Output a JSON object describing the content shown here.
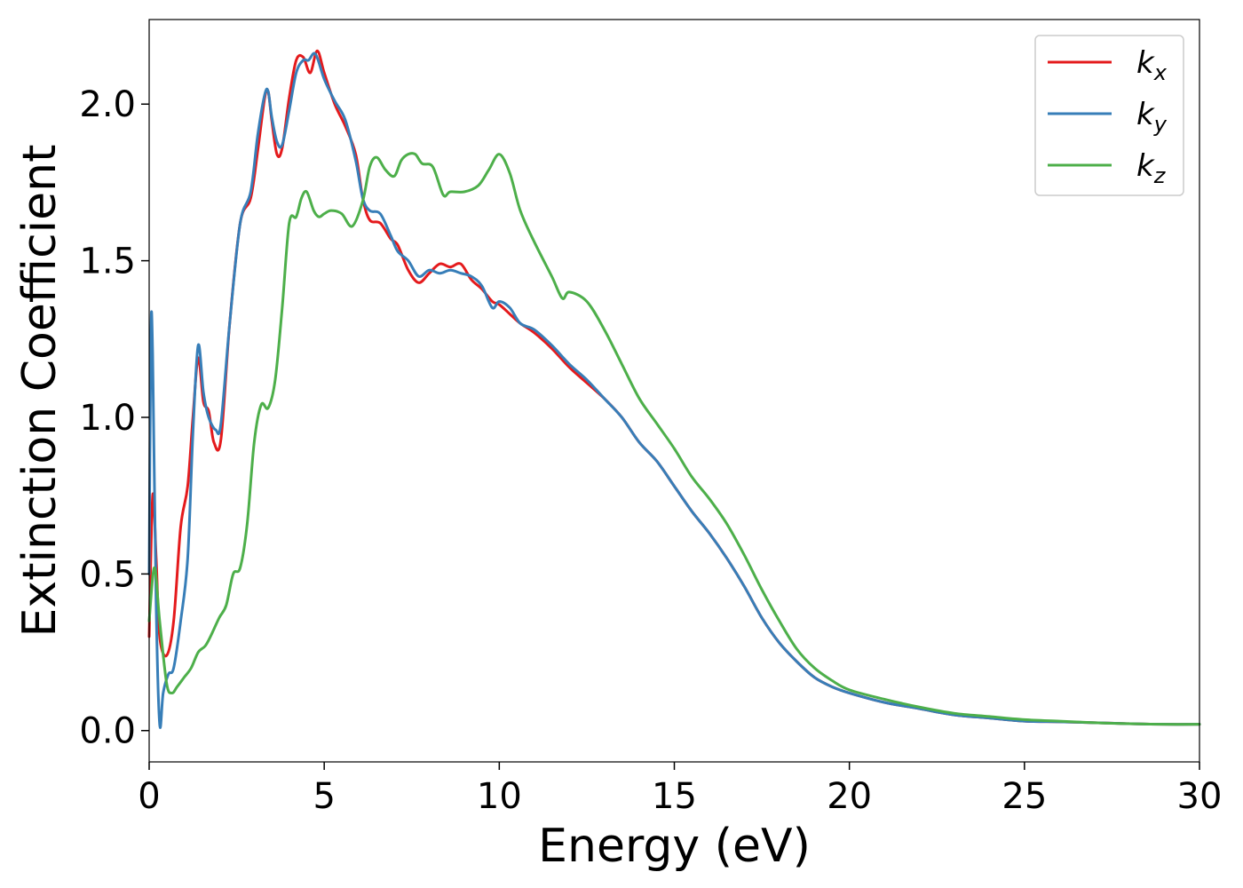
{
  "chart_data": {
    "type": "line",
    "xlabel": "Energy (eV)",
    "ylabel": "Extinction Coefficient",
    "xlim": [
      0,
      30
    ],
    "ylim": [
      -0.1,
      2.27
    ],
    "xticks": [
      0,
      5,
      10,
      15,
      20,
      25,
      30
    ],
    "yticks": [
      0.0,
      0.5,
      1.0,
      1.5,
      2.0
    ],
    "xtick_labels": [
      "0",
      "5",
      "10",
      "15",
      "20",
      "25",
      "30"
    ],
    "ytick_labels": [
      "0.0",
      "0.5",
      "1.0",
      "1.5",
      "2.0"
    ],
    "grid": false,
    "legend_position": "top-right",
    "series": [
      {
        "name": "k_x",
        "label_base": "k",
        "label_sub": "x",
        "color": "#e41a1c",
        "x": [
          0,
          0.1,
          0.2,
          0.3,
          0.5,
          0.7,
          0.9,
          1.1,
          1.25,
          1.4,
          1.55,
          1.7,
          1.85,
          2.05,
          2.3,
          2.6,
          2.9,
          3.1,
          3.3,
          3.4,
          3.5,
          3.65,
          3.8,
          4.0,
          4.2,
          4.4,
          4.6,
          4.8,
          5.0,
          5.3,
          5.6,
          5.9,
          6.1,
          6.3,
          6.6,
          6.9,
          7.1,
          7.4,
          7.7,
          8.0,
          8.3,
          8.6,
          8.9,
          9.2,
          9.5,
          9.8,
          10.0,
          10.3,
          10.6,
          11.0,
          11.5,
          12.0,
          12.5,
          13.0,
          13.5,
          14.0,
          14.5,
          15.0,
          15.5,
          16.0,
          16.5,
          17.0,
          17.5,
          18.0,
          18.5,
          19.0,
          19.5,
          20.0,
          21.0,
          22.0,
          23.0,
          24.0,
          25.0,
          26.0,
          27.0,
          28.0,
          29.0,
          30.0
        ],
        "y": [
          0.3,
          0.75,
          0.55,
          0.3,
          0.24,
          0.35,
          0.65,
          0.78,
          1.0,
          1.19,
          1.05,
          1.02,
          0.92,
          0.93,
          1.3,
          1.62,
          1.7,
          1.85,
          2.02,
          2.04,
          1.95,
          1.84,
          1.86,
          2.02,
          2.14,
          2.15,
          2.1,
          2.17,
          2.1,
          2.0,
          1.93,
          1.84,
          1.7,
          1.63,
          1.62,
          1.57,
          1.55,
          1.47,
          1.43,
          1.46,
          1.49,
          1.48,
          1.49,
          1.44,
          1.41,
          1.37,
          1.36,
          1.33,
          1.3,
          1.27,
          1.22,
          1.16,
          1.11,
          1.06,
          1.0,
          0.92,
          0.86,
          0.78,
          0.7,
          0.63,
          0.55,
          0.46,
          0.36,
          0.28,
          0.22,
          0.17,
          0.14,
          0.12,
          0.09,
          0.07,
          0.05,
          0.04,
          0.03,
          0.028,
          0.025,
          0.022,
          0.02,
          0.02
        ]
      },
      {
        "name": "k_y",
        "label_base": "k",
        "label_sub": "y",
        "color": "#377eb8",
        "x": [
          0,
          0.05,
          0.1,
          0.2,
          0.3,
          0.4,
          0.55,
          0.7,
          0.9,
          1.1,
          1.25,
          1.4,
          1.55,
          1.7,
          1.9,
          2.05,
          2.3,
          2.6,
          2.9,
          3.1,
          3.3,
          3.4,
          3.5,
          3.65,
          3.8,
          4.0,
          4.2,
          4.4,
          4.55,
          4.75,
          5.0,
          5.3,
          5.6,
          5.9,
          6.1,
          6.3,
          6.6,
          6.9,
          7.1,
          7.4,
          7.7,
          8.0,
          8.3,
          8.6,
          8.9,
          9.2,
          9.5,
          9.8,
          10.0,
          10.3,
          10.6,
          11.0,
          11.5,
          12.0,
          12.5,
          13.0,
          13.5,
          14.0,
          14.5,
          15.0,
          15.5,
          16.0,
          16.5,
          17.0,
          17.5,
          18.0,
          18.5,
          19.0,
          19.5,
          20.0,
          21.0,
          22.0,
          23.0,
          24.0,
          25.0,
          26.0,
          27.0,
          28.0,
          29.0,
          30.0
        ],
        "y": [
          0.5,
          1.27,
          1.2,
          0.4,
          0.02,
          0.12,
          0.18,
          0.2,
          0.35,
          0.55,
          0.95,
          1.23,
          1.08,
          1.0,
          0.96,
          0.98,
          1.3,
          1.62,
          1.72,
          1.9,
          2.03,
          2.04,
          1.96,
          1.88,
          1.87,
          1.98,
          2.1,
          2.14,
          2.14,
          2.16,
          2.08,
          2.01,
          1.95,
          1.82,
          1.7,
          1.66,
          1.65,
          1.58,
          1.53,
          1.5,
          1.45,
          1.47,
          1.46,
          1.47,
          1.46,
          1.45,
          1.42,
          1.35,
          1.37,
          1.35,
          1.3,
          1.28,
          1.23,
          1.17,
          1.12,
          1.06,
          1.0,
          0.92,
          0.86,
          0.78,
          0.7,
          0.63,
          0.55,
          0.46,
          0.36,
          0.28,
          0.22,
          0.17,
          0.14,
          0.12,
          0.09,
          0.07,
          0.05,
          0.04,
          0.03,
          0.028,
          0.025,
          0.022,
          0.02,
          0.02
        ]
      },
      {
        "name": "k_z",
        "label_base": "k",
        "label_sub": "z",
        "color": "#4daf4a",
        "x": [
          0,
          0.15,
          0.3,
          0.5,
          0.65,
          0.8,
          1.0,
          1.2,
          1.4,
          1.6,
          1.75,
          2.0,
          2.2,
          2.4,
          2.6,
          2.8,
          3.0,
          3.2,
          3.4,
          3.6,
          3.8,
          4.0,
          4.2,
          4.35,
          4.5,
          4.7,
          4.85,
          5.0,
          5.2,
          5.5,
          5.8,
          6.1,
          6.3,
          6.5,
          6.75,
          7.0,
          7.2,
          7.4,
          7.6,
          7.8,
          8.1,
          8.4,
          8.6,
          9.0,
          9.4,
          9.7,
          10.0,
          10.3,
          10.6,
          11.0,
          11.5,
          11.8,
          12.0,
          12.5,
          13.0,
          13.5,
          14.0,
          14.5,
          15.0,
          15.5,
          16.0,
          16.5,
          17.0,
          17.5,
          18.0,
          18.5,
          19.0,
          19.5,
          20.0,
          21.0,
          22.0,
          23.0,
          24.0,
          25.0,
          26.0,
          27.0,
          28.0,
          29.0,
          30.0
        ],
        "y": [
          0.35,
          0.52,
          0.35,
          0.15,
          0.12,
          0.14,
          0.17,
          0.2,
          0.25,
          0.27,
          0.3,
          0.36,
          0.4,
          0.5,
          0.52,
          0.66,
          0.92,
          1.04,
          1.03,
          1.12,
          1.35,
          1.62,
          1.64,
          1.7,
          1.72,
          1.66,
          1.64,
          1.65,
          1.66,
          1.65,
          1.61,
          1.69,
          1.8,
          1.83,
          1.79,
          1.77,
          1.82,
          1.84,
          1.84,
          1.81,
          1.8,
          1.71,
          1.72,
          1.72,
          1.74,
          1.79,
          1.84,
          1.78,
          1.66,
          1.56,
          1.45,
          1.38,
          1.4,
          1.37,
          1.28,
          1.17,
          1.06,
          0.98,
          0.9,
          0.81,
          0.74,
          0.66,
          0.56,
          0.45,
          0.35,
          0.26,
          0.2,
          0.16,
          0.13,
          0.1,
          0.075,
          0.055,
          0.045,
          0.035,
          0.03,
          0.025,
          0.022,
          0.02,
          0.02
        ]
      }
    ]
  }
}
